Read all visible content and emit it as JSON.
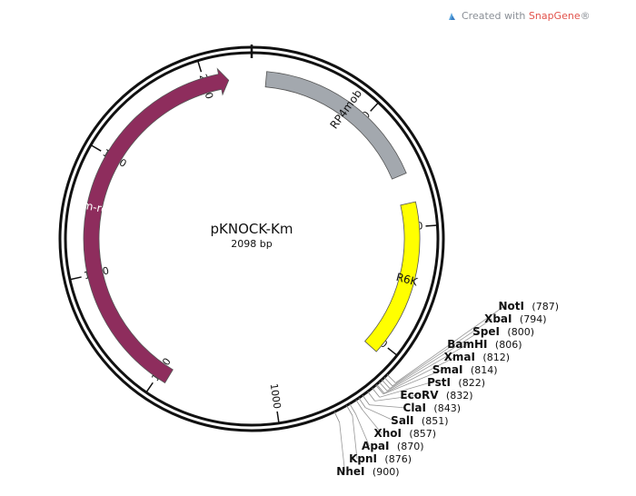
{
  "credit": {
    "prefix": "Created with",
    "brand": "SnapGene",
    "suffix": "®"
  },
  "plasmid": {
    "name": "pKNOCK-Km",
    "size_label": "2098 bp",
    "length": 2098
  },
  "ticks": [
    {
      "label": "2000",
      "pos": 2000
    },
    {
      "label": "250",
      "pos": 250
    },
    {
      "label": "500",
      "pos": 500
    },
    {
      "label": "750",
      "pos": 750
    },
    {
      "label": "1000",
      "pos": 1000
    },
    {
      "label": "1250",
      "pos": 1250
    },
    {
      "label": "1500",
      "pos": 1500
    },
    {
      "label": "1750",
      "pos": 1750
    }
  ],
  "features": [
    {
      "name": "RP4mob",
      "start": 30,
      "end": 390,
      "color": "#a3a8ae",
      "arrow": false,
      "label_color": "dark"
    },
    {
      "name": "R6K",
      "start": 450,
      "end": 770,
      "color": "#ffff00",
      "arrow": false,
      "label_color": "dark"
    },
    {
      "name": "Km-res",
      "start": 1230,
      "end": 2050,
      "color": "#8e2d5d",
      "arrow": true,
      "label_color": "light"
    }
  ],
  "sites": [
    {
      "name": "NotI",
      "pos": 787,
      "pos_label": "(787)"
    },
    {
      "name": "XbaI",
      "pos": 794,
      "pos_label": "(794)"
    },
    {
      "name": "SpeI",
      "pos": 800,
      "pos_label": "(800)"
    },
    {
      "name": "BamHI",
      "pos": 806,
      "pos_label": "(806)"
    },
    {
      "name": "XmaI",
      "pos": 812,
      "pos_label": "(812)"
    },
    {
      "name": "SmaI",
      "pos": 814,
      "pos_label": "(814)"
    },
    {
      "name": "PstI",
      "pos": 822,
      "pos_label": "(822)"
    },
    {
      "name": "EcoRV",
      "pos": 832,
      "pos_label": "(832)"
    },
    {
      "name": "ClaI",
      "pos": 843,
      "pos_label": "(843)"
    },
    {
      "name": "SalI",
      "pos": 851,
      "pos_label": "(851)"
    },
    {
      "name": "XhoI",
      "pos": 857,
      "pos_label": "(857)"
    },
    {
      "name": "ApaI",
      "pos": 870,
      "pos_label": "(870)"
    },
    {
      "name": "KpnI",
      "pos": 876,
      "pos_label": "(876)"
    },
    {
      "name": "NheI",
      "pos": 900,
      "pos_label": "(900)"
    }
  ]
}
